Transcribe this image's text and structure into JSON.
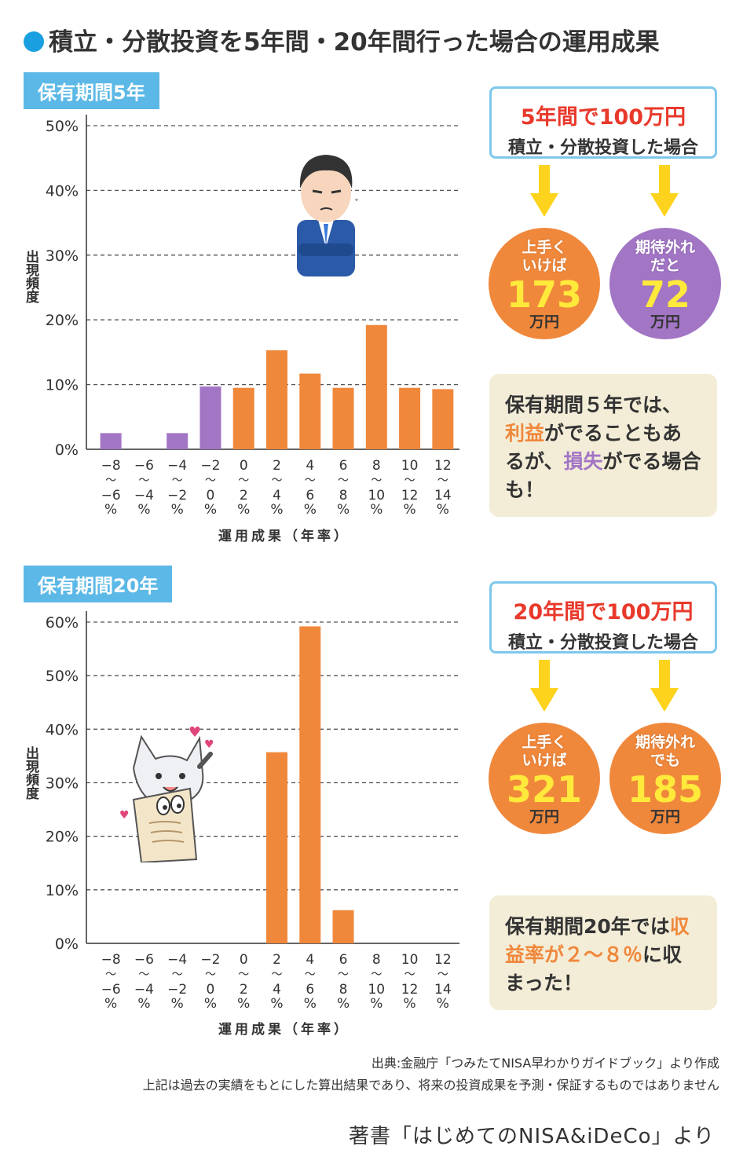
{
  "title": "積立・分散投資を5年間・20年間行った場合の運用成果",
  "colors": {
    "accent_blue": "#5cb8e6",
    "orange": "#f0883c",
    "purple": "#a275c5",
    "red": "#e8392b",
    "yellow": "#ffe93b",
    "note_bg": "#f3edd8"
  },
  "section5": {
    "tag": "保有期間5年",
    "box_line1": "5年間で100万円",
    "box_line2": "積立・分散投資した場合",
    "good_caption_1": "上手く",
    "good_caption_2": "いけば",
    "good_value": "173",
    "good_unit": "万円",
    "bad_caption_1": "期待外れ",
    "bad_caption_2": "だと",
    "bad_value": "72",
    "bad_unit": "万円",
    "note_parts": [
      "保有期間５年では、",
      "利益",
      "がでることもあるが、",
      "損失",
      "がでる場合も！"
    ]
  },
  "section20": {
    "tag": "保有期間20年",
    "box_line1": "20年間で100万円",
    "box_line2": "積立・分散投資した場合",
    "good_caption_1": "上手く",
    "good_caption_2": "いけば",
    "good_value": "321",
    "good_unit": "万円",
    "bad_caption_1": "期待外れ",
    "bad_caption_2": "でも",
    "bad_value": "185",
    "bad_unit": "万円",
    "note_parts": [
      "保有期間20年では",
      "収益率が２～８％",
      "に収まった！"
    ]
  },
  "chart_data": [
    {
      "type": "bar",
      "title": "保有期間5年",
      "ylabel": "出現頻度",
      "xlabel": "運用成果（年率）",
      "categories": [
        [
          "−8",
          "〜",
          "−6",
          "%"
        ],
        [
          "−6",
          "〜",
          "−4",
          "%"
        ],
        [
          "−4",
          "〜",
          "−2",
          "%"
        ],
        [
          "−2",
          "〜",
          "0",
          "%"
        ],
        [
          "0",
          "〜",
          "2",
          "%"
        ],
        [
          "2",
          "〜",
          "4",
          "%"
        ],
        [
          "4",
          "〜",
          "6",
          "%"
        ],
        [
          "6",
          "〜",
          "8",
          "%"
        ],
        [
          "8",
          "〜",
          "10",
          "%"
        ],
        [
          "10",
          "〜",
          "12",
          "%"
        ],
        [
          "12",
          "〜",
          "14",
          "%"
        ]
      ],
      "values": [
        2.5,
        0,
        2.5,
        9.7,
        9.5,
        15.3,
        11.7,
        9.5,
        19.2,
        9.5,
        9.3
      ],
      "bar_colors": [
        "#a275c5",
        "#a275c5",
        "#a275c5",
        "#a275c5",
        "#f0883c",
        "#f0883c",
        "#f0883c",
        "#f0883c",
        "#f0883c",
        "#f0883c",
        "#f0883c"
      ],
      "ylim": [
        0,
        50
      ],
      "yticks": [
        0,
        10,
        20,
        30,
        40,
        50
      ],
      "ytick_labels": [
        "0%",
        "10%",
        "20%",
        "30%",
        "40%",
        "50%"
      ],
      "grid": true
    },
    {
      "type": "bar",
      "title": "保有期間20年",
      "ylabel": "出現頻度",
      "xlabel": "運用成果（年率）",
      "categories": [
        [
          "−8",
          "〜",
          "−6",
          "%"
        ],
        [
          "−6",
          "〜",
          "−4",
          "%"
        ],
        [
          "−4",
          "〜",
          "−2",
          "%"
        ],
        [
          "−2",
          "〜",
          "0",
          "%"
        ],
        [
          "0",
          "〜",
          "2",
          "%"
        ],
        [
          "2",
          "〜",
          "4",
          "%"
        ],
        [
          "4",
          "〜",
          "6",
          "%"
        ],
        [
          "6",
          "〜",
          "8",
          "%"
        ],
        [
          "8",
          "〜",
          "10",
          "%"
        ],
        [
          "10",
          "〜",
          "12",
          "%"
        ],
        [
          "12",
          "〜",
          "14",
          "%"
        ]
      ],
      "values": [
        0,
        0,
        0,
        0,
        0,
        35.7,
        59.2,
        6.2,
        0,
        0,
        0
      ],
      "bar_colors": [
        "#a275c5",
        "#a275c5",
        "#a275c5",
        "#a275c5",
        "#f0883c",
        "#f0883c",
        "#f0883c",
        "#f0883c",
        "#f0883c",
        "#f0883c",
        "#f0883c"
      ],
      "ylim": [
        0,
        60
      ],
      "yticks": [
        0,
        10,
        20,
        30,
        40,
        50,
        60
      ],
      "ytick_labels": [
        "0%",
        "10%",
        "20%",
        "30%",
        "40%",
        "50%",
        "60%"
      ],
      "grid": true
    }
  ],
  "source_line": "出典:金融庁「つみたてNISA早わかりガイドブック」より作成",
  "disclaimer": "上記は過去の実績をもとにした算出結果であり、将来の投資成果を予測・保証するものではありません",
  "credit": "著書「はじめてのNISA&iDeCo」より"
}
